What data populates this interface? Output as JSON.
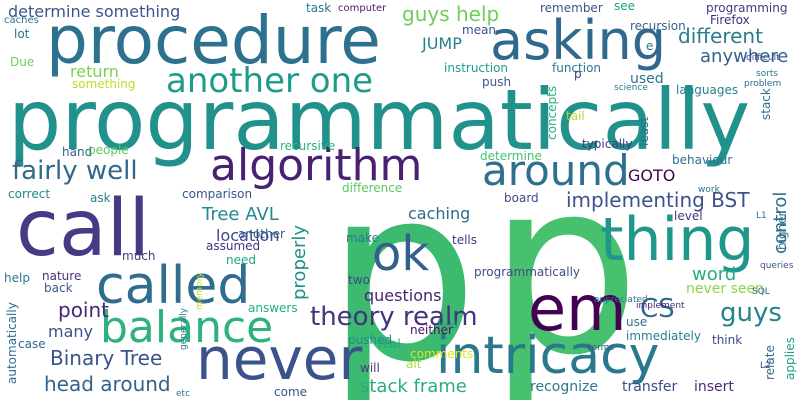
{
  "words": [
    {
      "text": "p",
      "color": "#3cba6f"
    },
    {
      "text": "p",
      "color": "#48c16e"
    },
    {
      "text": "programmatically",
      "color": "#21918c"
    },
    {
      "text": "procedure",
      "color": "#2c728e"
    },
    {
      "text": "asking",
      "color": "#31688e"
    },
    {
      "text": "call",
      "color": "#443b84"
    },
    {
      "text": "called",
      "color": "#2f6c8e"
    },
    {
      "text": "never",
      "color": "#3b528b"
    },
    {
      "text": "intricacy",
      "color": "#2a788e"
    },
    {
      "text": "em",
      "color": "#440154"
    },
    {
      "text": "thing",
      "color": "#1f978b"
    },
    {
      "text": "balance",
      "color": "#2db27d"
    },
    {
      "text": "algorithm",
      "color": "#482173"
    },
    {
      "text": "another one",
      "color": "#1e9c89"
    },
    {
      "text": "around",
      "color": "#2e6e8e"
    },
    {
      "text": "ok",
      "color": "#355f8d"
    },
    {
      "text": "theory realm",
      "color": "#46327e"
    },
    {
      "text": "fairly well",
      "color": "#31688e"
    },
    {
      "text": "CS",
      "color": "#31688e"
    },
    {
      "text": "guys",
      "color": "#26828e"
    },
    {
      "text": "implementing BST",
      "color": "#3b528b"
    },
    {
      "text": "head around",
      "color": "#33638d"
    },
    {
      "text": "stack frame",
      "color": "#27ad81"
    },
    {
      "text": "determine something",
      "color": "#39558c"
    },
    {
      "text": "guys help",
      "color": "#6ece58"
    },
    {
      "text": "different",
      "color": "#287d8e"
    },
    {
      "text": "anywhere",
      "color": "#33638d"
    },
    {
      "text": "Binary Tree",
      "color": "#3b528b"
    },
    {
      "text": "Tree AVL",
      "color": "#23898e"
    },
    {
      "text": "caching",
      "color": "#31688e"
    },
    {
      "text": "questions",
      "color": "#482374"
    },
    {
      "text": "point",
      "color": "#482677"
    },
    {
      "text": "many",
      "color": "#3b528b"
    },
    {
      "text": "location",
      "color": "#3e4989"
    },
    {
      "text": "return",
      "color": "#7ad151"
    },
    {
      "text": "JUMP",
      "color": "#27808e"
    },
    {
      "text": "GOTO",
      "color": "#440154"
    },
    {
      "text": "properly",
      "color": "#21918c"
    },
    {
      "text": "control",
      "color": "#2c728e"
    },
    {
      "text": "word",
      "color": "#26ad81"
    },
    {
      "text": "never seen",
      "color": "#8bd646"
    },
    {
      "text": "recognize",
      "color": "#2a788e"
    },
    {
      "text": "transfer",
      "color": "#3e4a89"
    },
    {
      "text": "insert",
      "color": "#482878"
    },
    {
      "text": "used",
      "color": "#2c728e"
    },
    {
      "text": "task",
      "color": "#2a788e"
    },
    {
      "text": "computer",
      "color": "#481a6c"
    },
    {
      "text": "remember",
      "color": "#3b528b"
    },
    {
      "text": "see",
      "color": "#1fa088"
    },
    {
      "text": "programming",
      "color": "#453882"
    },
    {
      "text": "caches",
      "color": "#2a768e"
    },
    {
      "text": "lot",
      "color": "#2c718e"
    },
    {
      "text": "Due",
      "color": "#6ece58"
    },
    {
      "text": "something",
      "color": "#bddf26"
    },
    {
      "text": "mean",
      "color": "#3b518b"
    },
    {
      "text": "recursion",
      "color": "#32648e"
    },
    {
      "text": "Firefox",
      "color": "#472c7a"
    },
    {
      "text": "instruction",
      "color": "#1f9e89"
    },
    {
      "text": "function",
      "color": "#2a788e"
    },
    {
      "text": "push",
      "color": "#375a8c"
    },
    {
      "text": "languages",
      "color": "#26828e"
    },
    {
      "text": "behaviour",
      "color": "#2c728e"
    },
    {
      "text": "typically",
      "color": "#443a83"
    },
    {
      "text": "concepts",
      "color": "#29af7f"
    },
    {
      "text": "tail",
      "color": "#b5de2b"
    },
    {
      "text": "least",
      "color": "#2c718e"
    },
    {
      "text": "stack",
      "color": "#2d718e"
    },
    {
      "text": "difficult",
      "color": "#3f4889"
    },
    {
      "text": "sorts",
      "color": "#2a788e"
    },
    {
      "text": "problem",
      "color": "#31688e"
    },
    {
      "text": "science",
      "color": "#26828e"
    },
    {
      "text": "hand",
      "color": "#33628d"
    },
    {
      "text": "people",
      "color": "#5ec962"
    },
    {
      "text": "recursive",
      "color": "#2db27d"
    },
    {
      "text": "determine",
      "color": "#48c16e"
    },
    {
      "text": "board",
      "color": "#3e4a89"
    },
    {
      "text": "difference",
      "color": "#5cc863"
    },
    {
      "text": "comparison",
      "color": "#39568c"
    },
    {
      "text": "correct",
      "color": "#23898e"
    },
    {
      "text": "ask",
      "color": "#26828e"
    },
    {
      "text": "assumed",
      "color": "#46307e"
    },
    {
      "text": "another",
      "color": "#355f8d"
    },
    {
      "text": "make",
      "color": "#2a788e"
    },
    {
      "text": "tells",
      "color": "#443983"
    },
    {
      "text": "much",
      "color": "#424086"
    },
    {
      "text": "need",
      "color": "#21a685"
    },
    {
      "text": "help",
      "color": "#2a788e"
    },
    {
      "text": "nature",
      "color": "#46327e"
    },
    {
      "text": "back",
      "color": "#38598c"
    },
    {
      "text": "two",
      "color": "#404688"
    },
    {
      "text": "answers",
      "color": "#29af7f"
    },
    {
      "text": "case",
      "color": "#30698e"
    },
    {
      "text": "programmatically",
      "color": "#3e4c8a"
    },
    {
      "text": "appreciated",
      "color": "#2a788e"
    },
    {
      "text": "use",
      "color": "#2c728e"
    },
    {
      "text": "immediately",
      "color": "#277f8e"
    },
    {
      "text": "pushed",
      "color": "#228c8d"
    },
    {
      "text": "real",
      "color": "#22a785"
    },
    {
      "text": "neither",
      "color": "#471063"
    },
    {
      "text": "comments",
      "color": "#dfe318"
    },
    {
      "text": "alt",
      "color": "#addc30"
    },
    {
      "text": "will",
      "color": "#443983"
    },
    {
      "text": "come",
      "color": "#3b528b"
    },
    {
      "text": "think",
      "color": "#3e4989"
    },
    {
      "text": "relate",
      "color": "#31688e"
    },
    {
      "text": "applies",
      "color": "#1f9e89"
    },
    {
      "text": "higher",
      "color": "#2d708e"
    },
    {
      "text": "level",
      "color": "#46327e"
    },
    {
      "text": "L1",
      "color": "#2e6d8e"
    },
    {
      "text": "work",
      "color": "#2c728e"
    },
    {
      "text": "SQL",
      "color": "#39558c"
    },
    {
      "text": "queries",
      "color": "#3b528b"
    },
    {
      "text": "implement",
      "color": "#482475"
    },
    {
      "text": "terms",
      "color": "#38588c"
    },
    {
      "text": "L2",
      "color": "#443983"
    },
    {
      "text": "held",
      "color": "#1f988b"
    },
    {
      "text": "etc",
      "color": "#2c728e"
    },
    {
      "text": "generally",
      "color": "#2a788e"
    },
    {
      "text": "memory",
      "color": "#bddf26"
    },
    {
      "text": "automatically",
      "color": "#2d708e"
    },
    {
      "text": "e",
      "color": "#2a788e"
    },
    {
      "text": "p",
      "color": "#453882"
    }
  ]
}
